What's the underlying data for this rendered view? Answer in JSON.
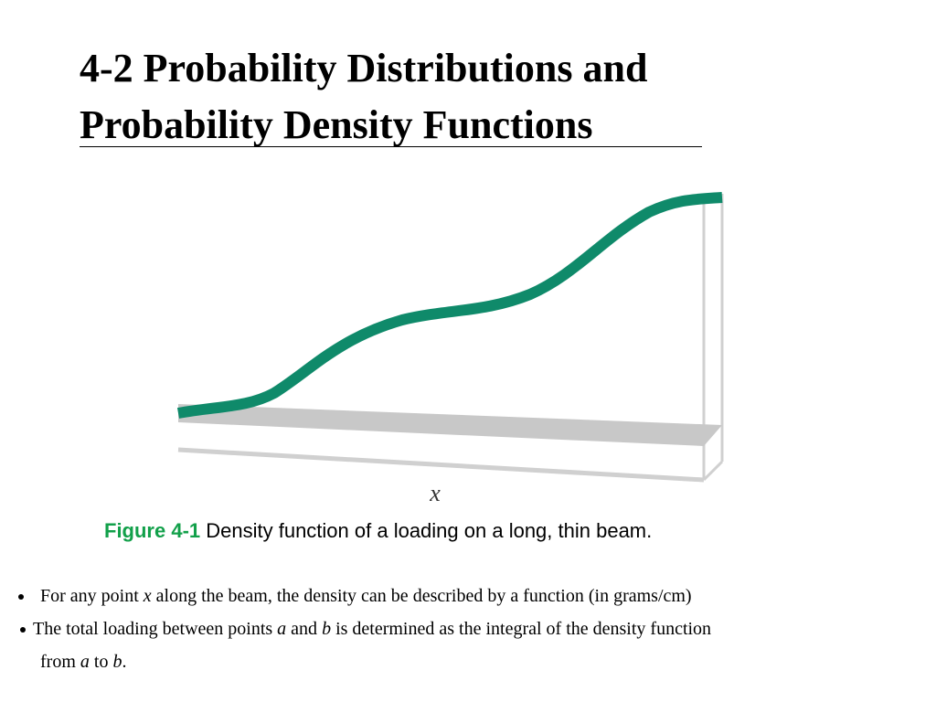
{
  "title": [
    "4-2 Probability Distributions and",
    "Probability Density Functions"
  ],
  "figure": {
    "axis_label": "x",
    "caption_label": "Figure 4-1",
    "caption_text": " Density function of a loading on a long, thin beam."
  },
  "bullets": [
    [
      "For any point ",
      "x",
      " along the beam, the density can be described by a function (in grams/cm)"
    ],
    [
      "The total loading between points ",
      "a",
      " and ",
      "b",
      " is determined as the integral of the density function"
    ],
    [
      "from ",
      "a",
      " to ",
      "b",
      "."
    ]
  ]
}
